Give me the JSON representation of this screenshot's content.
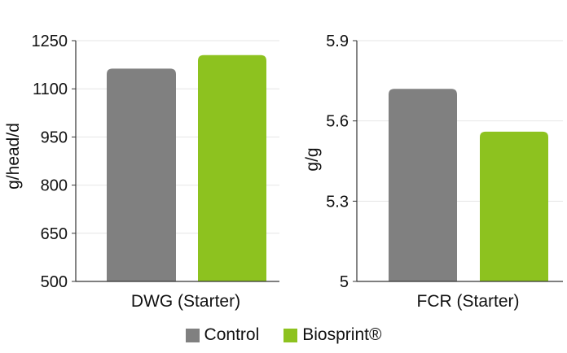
{
  "colors": {
    "control": "#808080",
    "biosprint": "#8dc21f",
    "grid": "#e6e6e6",
    "axis": "#333333"
  },
  "legend": [
    {
      "name": "Control",
      "color": "#808080"
    },
    {
      "name": "Biosprint®",
      "color": "#8dc21f"
    }
  ],
  "chart_data": [
    {
      "type": "bar",
      "categories": [
        "DWG (Starter)"
      ],
      "xlabel": "DWG (Starter)",
      "ylabel": "g/head/d",
      "ylim": [
        500,
        1250
      ],
      "yticks": [
        500,
        650,
        800,
        950,
        1100,
        1250
      ],
      "grid": true,
      "legend": "bottom",
      "series": [
        {
          "name": "Control",
          "values": [
            1163
          ]
        },
        {
          "name": "Biosprint®",
          "values": [
            1205
          ]
        }
      ]
    },
    {
      "type": "bar",
      "categories": [
        "FCR (Starter)"
      ],
      "xlabel": "FCR (Starter)",
      "ylabel": "g/g",
      "ylim": [
        5.0,
        5.9
      ],
      "yticks": [
        "5",
        "5.3",
        "5.6",
        "5.9"
      ],
      "grid": true,
      "legend": "bottom",
      "series": [
        {
          "name": "Control",
          "values": [
            5.72
          ]
        },
        {
          "name": "Biosprint®",
          "values": [
            5.56
          ]
        }
      ]
    }
  ]
}
